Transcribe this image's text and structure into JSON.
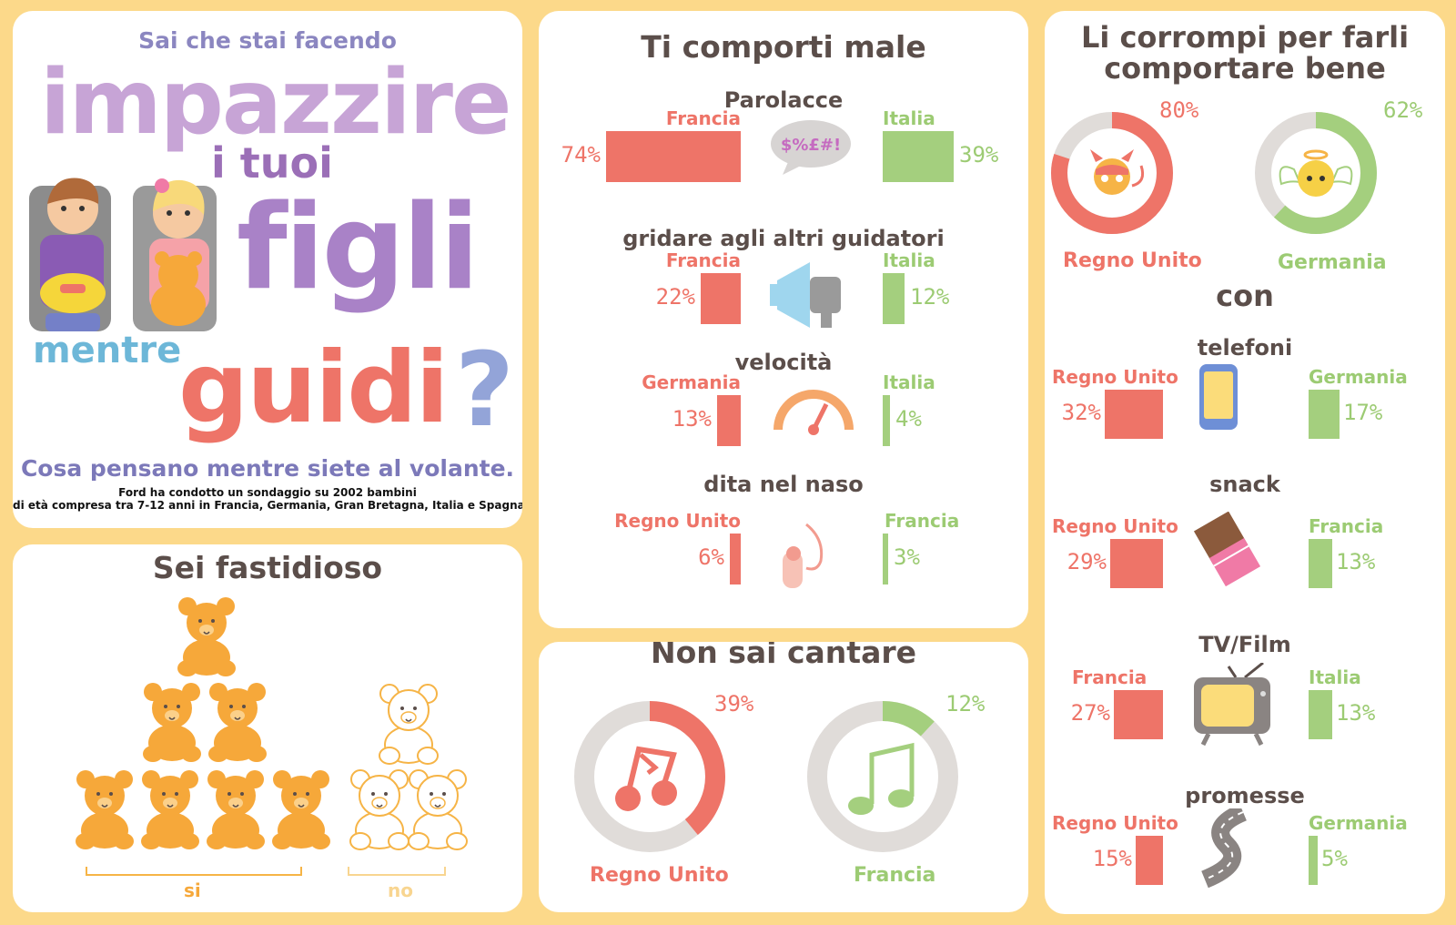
{
  "intro": {
    "kicker": "Sai che stai facendo",
    "word_impazzire": "impazzire",
    "word_itoui": "i tuoi",
    "word_figli": "figli",
    "word_mentre": "mentre",
    "word_guidi": "guidi",
    "question": "?",
    "subtitle": "Cosa pensano mentre siete al volante.",
    "note_line1": "Ford ha condotto un sondaggio su 2002 bambini",
    "note_line2": "di età compresa tra 7-12 anni in Francia, Germania, Gran Bretagna, Italia e Spagna."
  },
  "annoying": {
    "title": "Sei fastidioso",
    "yes_label": "si",
    "no_label": "no",
    "yes_count": 7,
    "no_count": 3,
    "colors": {
      "bear": "#f6a83a",
      "bear_outline": "#f6b446"
    }
  },
  "behave": {
    "title": "Ti comporti  male",
    "rows": [
      {
        "topic": "Parolacce",
        "left_country": "Francia",
        "left_pct": "74%",
        "left_value": 74,
        "right_country": "Italia",
        "right_pct": "39%",
        "right_value": 39,
        "icon": "speech-bubble-icon",
        "icon_text": "$%£#!"
      },
      {
        "topic": "gridare agli altri guidatori",
        "left_country": "Francia",
        "left_pct": "22%",
        "left_value": 22,
        "right_country": "Italia",
        "right_pct": "12%",
        "right_value": 12,
        "icon": "megaphone-icon"
      },
      {
        "topic": "velocità",
        "left_country": "Germania",
        "left_pct": "13%",
        "left_value": 13,
        "right_country": "Italia",
        "right_pct": "4%",
        "right_value": 4,
        "icon": "speedometer-icon"
      },
      {
        "topic": "dita nel naso",
        "left_country": "Regno Unito",
        "left_pct": "6%",
        "left_value": 6,
        "right_country": "Francia",
        "right_pct": "3%",
        "right_value": 3,
        "icon": "nose-icon"
      }
    ]
  },
  "sing": {
    "title": "Non sai cantare",
    "left": {
      "country": "Regno Unito",
      "pct": "39%",
      "value": 39,
      "icon": "music-note-red-icon"
    },
    "right": {
      "country": "Francia",
      "pct": "12%",
      "value": 12,
      "icon": "music-note-green-icon"
    }
  },
  "bribe": {
    "title_line1": "Li corrompi per farli",
    "title_line2": "comportare bene",
    "left": {
      "country": "Regno Unito",
      "pct": "80%",
      "value": 80,
      "icon": "devil-face-icon"
    },
    "right": {
      "country": "Germania",
      "pct": "62%",
      "value": 62,
      "icon": "angel-face-icon"
    },
    "connector": "con",
    "rows": [
      {
        "topic": "telefoni",
        "left_country": "Regno Unito",
        "left_pct": "32%",
        "left_value": 32,
        "right_country": "Germania",
        "right_pct": "17%",
        "right_value": 17,
        "icon": "phone-icon"
      },
      {
        "topic": "snack",
        "left_country": "Regno Unito",
        "left_pct": "29%",
        "left_value": 29,
        "right_country": "Francia",
        "right_pct": "13%",
        "right_value": 13,
        "icon": "chocolate-bar-icon"
      },
      {
        "topic": "TV/Film",
        "left_country": "Francia",
        "left_pct": "27%",
        "left_value": 27,
        "right_country": "Italia",
        "right_pct": "13%",
        "right_value": 13,
        "icon": "tv-icon"
      },
      {
        "topic": "promesse",
        "left_country": "Regno Unito",
        "left_pct": "15%",
        "left_value": 15,
        "right_country": "Germania",
        "right_pct": "5%",
        "right_value": 5,
        "icon": "road-icon"
      }
    ]
  },
  "colors": {
    "red": "#ee7468",
    "green": "#a4cf7e",
    "ring_bg": "#e0dcd9",
    "text": "#5b4e4a",
    "background": "#fcd98a"
  }
}
